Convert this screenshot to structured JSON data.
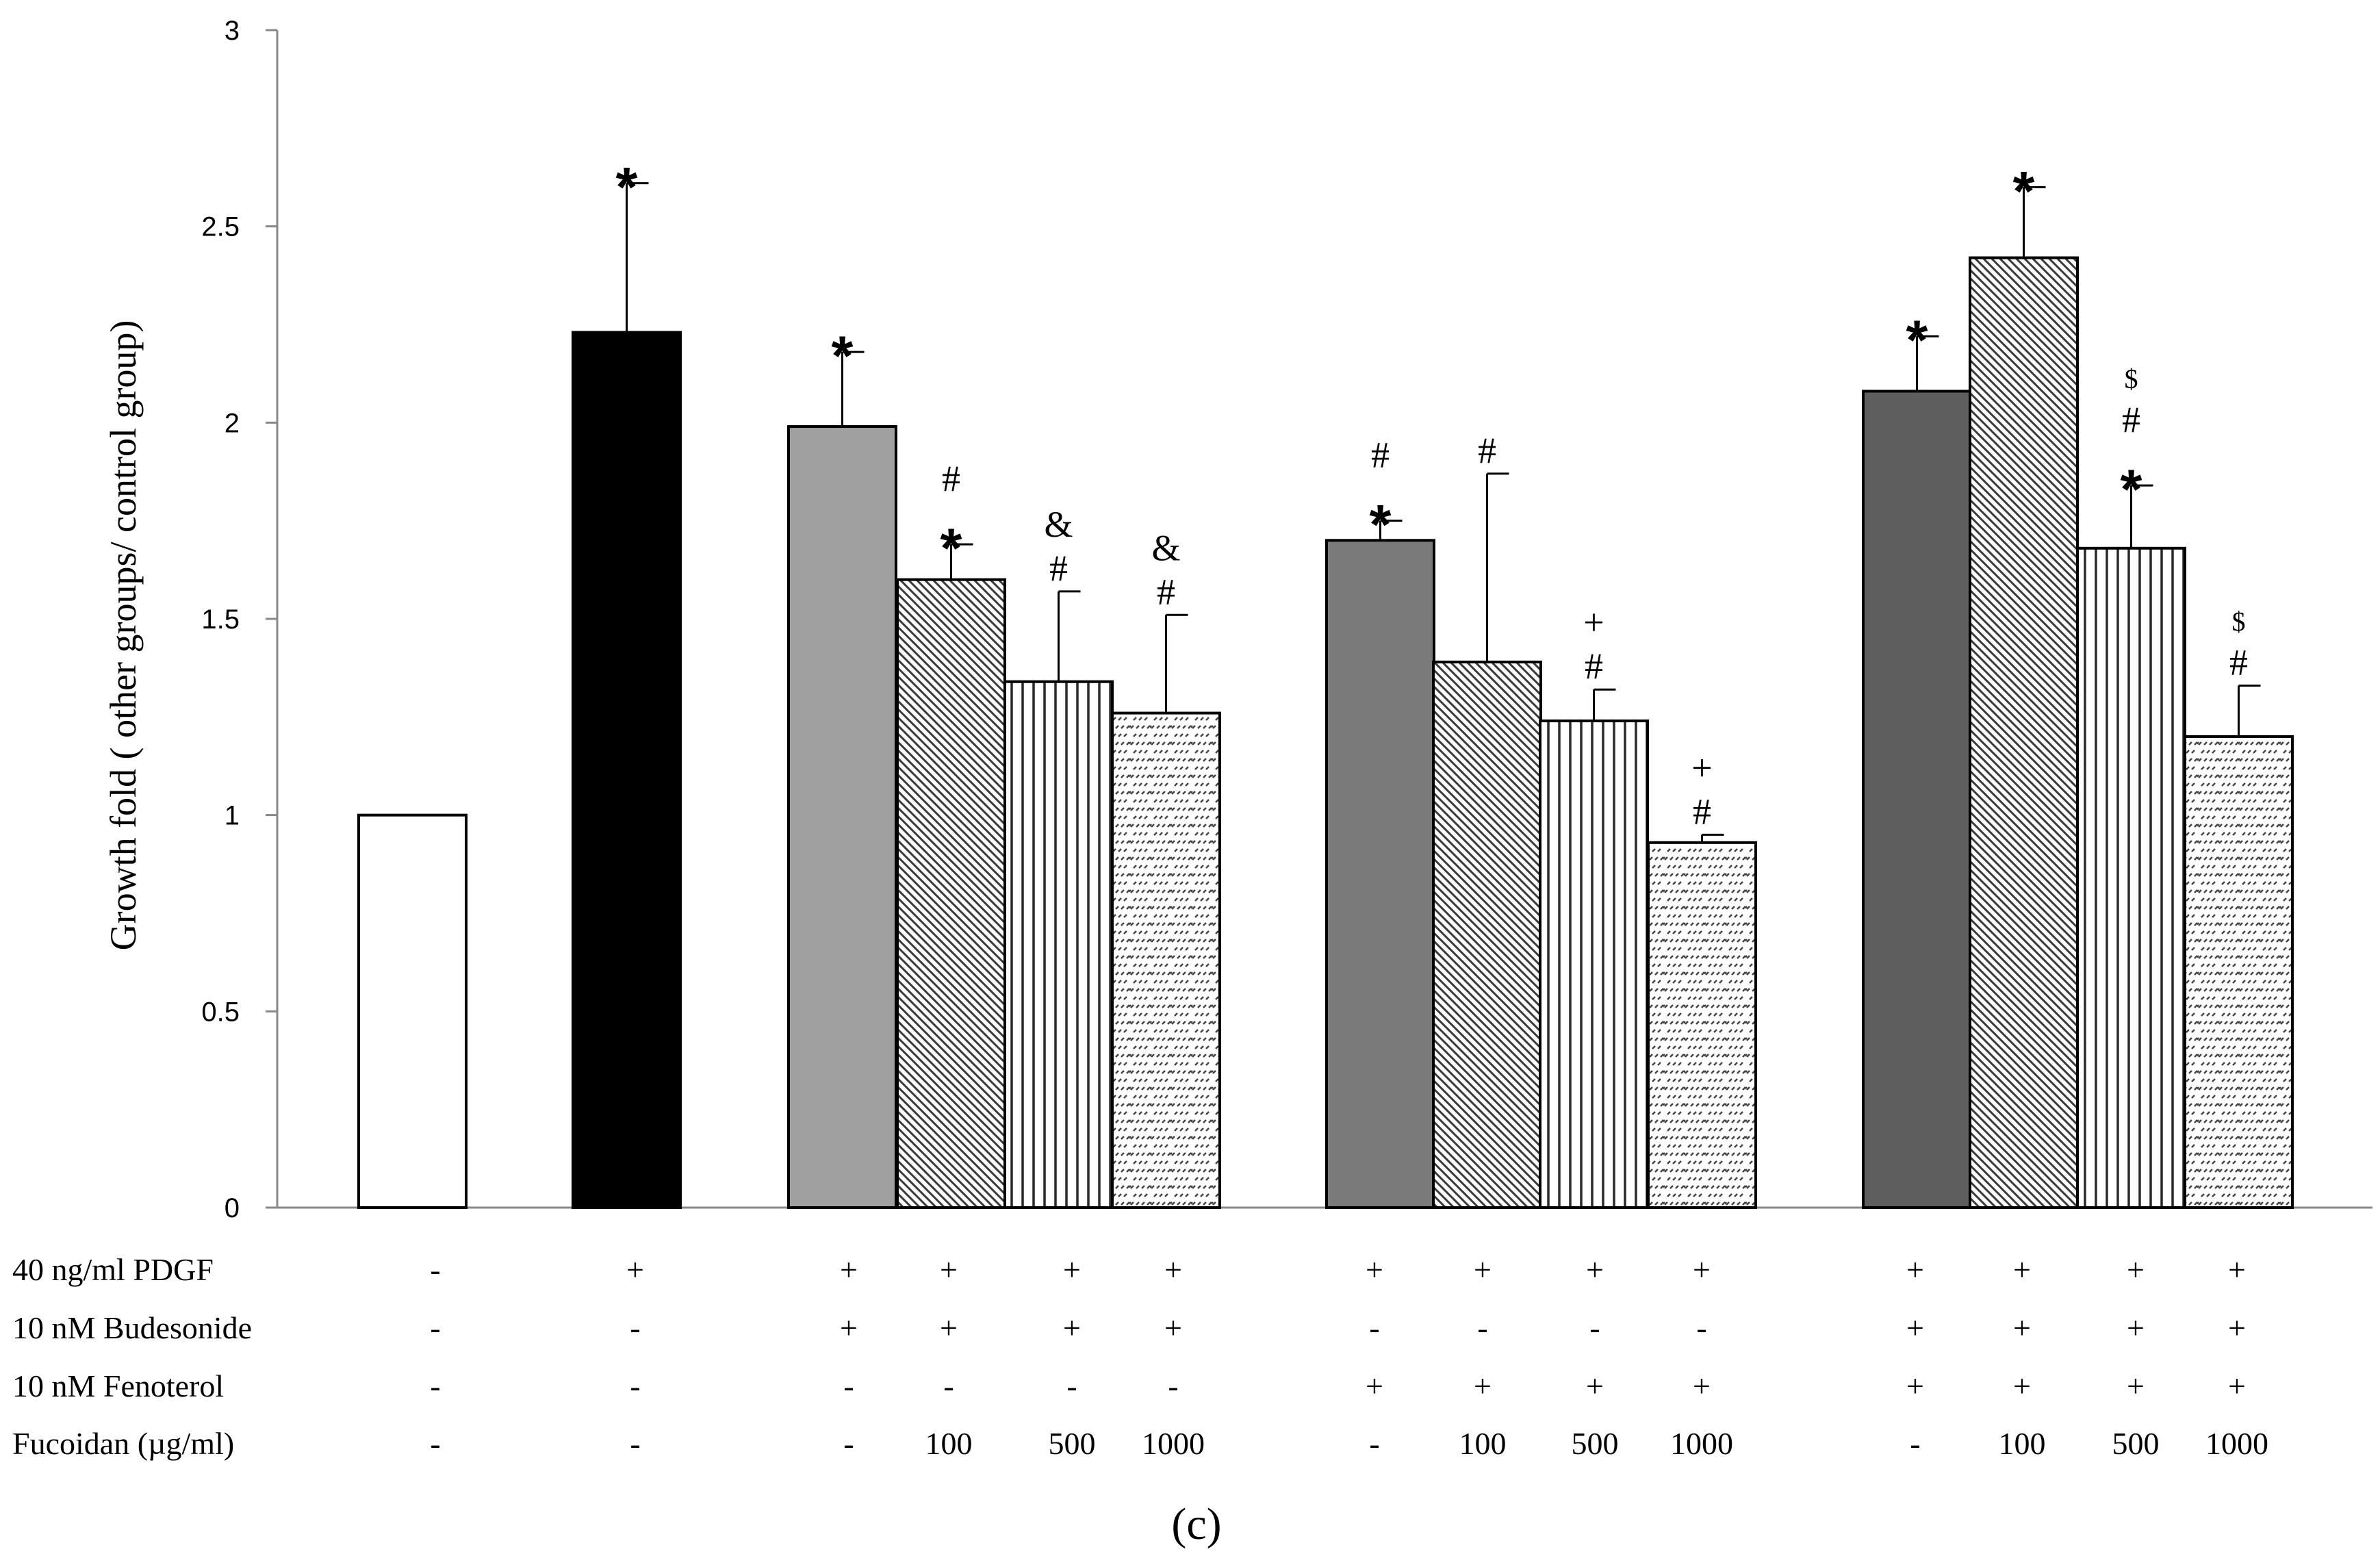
{
  "chart_data": {
    "type": "bar",
    "title": "",
    "xlabel": "",
    "ylabel": "Growth fold ( other groups/ control group)",
    "ylim": [
      0,
      3
    ],
    "yticks": [
      "0",
      "0.5",
      "1",
      "1.5",
      "2",
      "2.5",
      "3"
    ],
    "grid": false,
    "panel_label": "(c)",
    "condition_rows": [
      {
        "label": "40 ng/ml PDGF",
        "values": [
          "-",
          "+",
          "+",
          "+",
          "+",
          "+",
          "+",
          "+",
          "+",
          "+",
          "+",
          "+",
          "+",
          "+"
        ]
      },
      {
        "label": "10 nM Budesonide",
        "values": [
          "-",
          "-",
          "+",
          "+",
          "+",
          "+",
          "-",
          "-",
          "-",
          "-",
          "+",
          "+",
          "+",
          "+"
        ]
      },
      {
        "label": "10 nM Fenoterol",
        "values": [
          "-",
          "-",
          "-",
          "-",
          "-",
          "-",
          "+",
          "+",
          "+",
          "+",
          "+",
          "+",
          "+",
          "+"
        ]
      },
      {
        "label": "Fucoidan (µg/ml)",
        "values": [
          "-",
          "-",
          "-",
          "100",
          "500",
          "1000",
          "-",
          "100",
          "500",
          "1000",
          "-",
          "100",
          "500",
          "1000"
        ]
      }
    ],
    "bars": [
      {
        "value": 1.0,
        "error": 0.0,
        "pattern": "white",
        "marks": []
      },
      {
        "value": 2.23,
        "error": 0.38,
        "pattern": "black",
        "marks": [
          "*"
        ]
      },
      {
        "value": 1.99,
        "error": 0.19,
        "pattern": "lightgray",
        "marks": [
          "*"
        ]
      },
      {
        "value": 1.6,
        "error": 0.09,
        "pattern": "diagonal",
        "marks": [
          "*",
          "#"
        ]
      },
      {
        "value": 1.34,
        "error": 0.23,
        "pattern": "vertical",
        "marks": [
          "#",
          "&"
        ]
      },
      {
        "value": 1.26,
        "error": 0.25,
        "pattern": "dashed",
        "marks": [
          "#",
          "&"
        ]
      },
      {
        "value": 1.7,
        "error": 0.05,
        "pattern": "midgray",
        "marks": [
          "*",
          "#"
        ]
      },
      {
        "value": 1.39,
        "error": 0.48,
        "pattern": "diagonal",
        "marks": [
          "#"
        ]
      },
      {
        "value": 1.24,
        "error": 0.08,
        "pattern": "vertical",
        "marks": [
          "#",
          "+"
        ]
      },
      {
        "value": 0.93,
        "error": 0.02,
        "pattern": "dashed",
        "marks": [
          "#",
          "+"
        ]
      },
      {
        "value": 2.08,
        "error": 0.14,
        "pattern": "darkgray",
        "marks": [
          "*"
        ]
      },
      {
        "value": 2.42,
        "error": 0.18,
        "pattern": "diagonal",
        "marks": [
          "*"
        ]
      },
      {
        "value": 1.68,
        "error": 0.16,
        "pattern": "vertical",
        "marks": [
          "*",
          "#",
          "$"
        ]
      },
      {
        "value": 1.2,
        "error": 0.13,
        "pattern": "dashed",
        "marks": [
          "#",
          "$"
        ]
      }
    ]
  }
}
